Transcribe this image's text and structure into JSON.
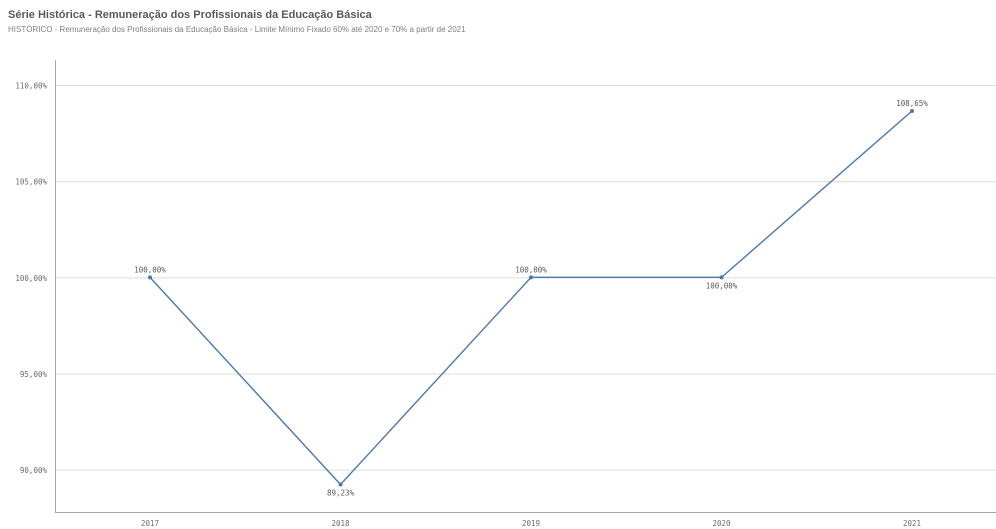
{
  "header": {
    "title": "Série Histórica - Remuneração dos Profissionais da Educação Básica",
    "subtitle": "HISTÓRICO - Remuneração dos Profissionais da Educação Básica - Limite Mínimo Fixado 60% até 2020 e 70% a partir de 2021"
  },
  "chart_data": {
    "type": "line",
    "title": "Série Histórica - Remuneração dos Profissionais da Educação Básica",
    "subtitle": "HISTÓRICO - Remuneração dos Profissionais da Educação Básica - Limite Mínimo Fixado 60% até 2020 e 70% a partir de 2021",
    "xlabel": "",
    "ylabel": "",
    "categories": [
      "2017",
      "2018",
      "2019",
      "2020",
      "2021"
    ],
    "series": [
      {
        "values": [
          100.0,
          89.23,
          100.0,
          100.0,
          108.65
        ],
        "labels": [
          "100,00%",
          "89,23%",
          "100,00%",
          "100,00%",
          "108,65%"
        ]
      }
    ],
    "y_ticks": [
      90,
      95,
      100,
      105,
      110
    ],
    "y_tick_labels": [
      "90,00%",
      "95,00%",
      "100,00%",
      "105,00%",
      "110,00%"
    ],
    "ylim": [
      87.8,
      111.3
    ],
    "grid": true,
    "legend": "none",
    "colors": {
      "line": "#4e79a7",
      "grid": "#dcdcdc",
      "axis": "#a6a6a6"
    }
  }
}
